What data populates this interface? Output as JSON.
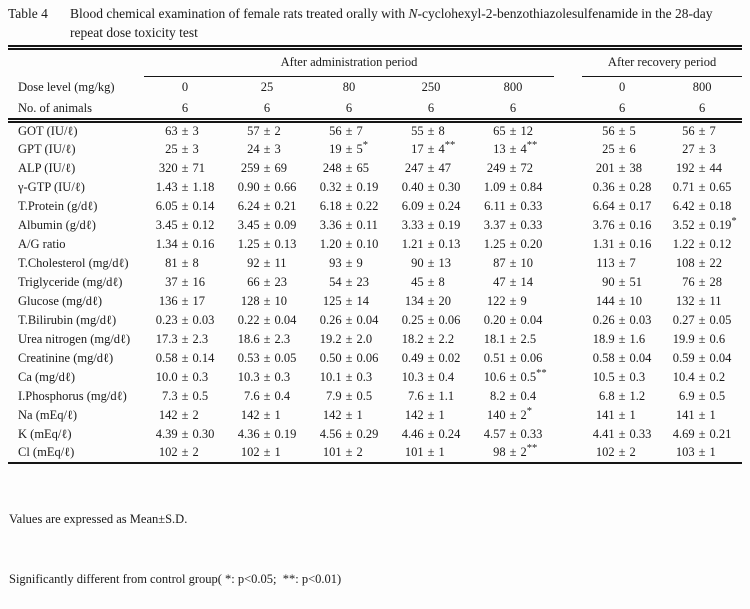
{
  "title": {
    "label": "Table 4",
    "text_before_italic": "Blood chemical examination of female rats treated orally with ",
    "italic": "N",
    "text_after_italic": "-cyclohexyl-2-benzothiazolesulfenamide in the 28-day repeat dose toxicity test"
  },
  "table": {
    "group_headers": {
      "administration": "After administration period",
      "recovery": "After recovery period"
    },
    "dose_row": {
      "label": "Dose level (mg/kg)",
      "admin": [
        "0",
        "25",
        "80",
        "250",
        "800"
      ],
      "recovery": [
        "0",
        "800"
      ]
    },
    "animals_row": {
      "label": "No. of animals",
      "admin": [
        "6",
        "6",
        "6",
        "6",
        "6"
      ],
      "recovery": [
        "6",
        "6"
      ]
    },
    "rows": [
      {
        "label": "GOT (IU/ℓ)",
        "admin": [
          "63 ± 3",
          "57 ± 2",
          "56 ± 7",
          "55 ± 8",
          "65 ± 12"
        ],
        "recovery": [
          "56 ± 5",
          "56 ± 7"
        ]
      },
      {
        "label": "GPT (IU/ℓ)",
        "admin": [
          "25 ± 3",
          "24 ± 3",
          "19 ± 5*",
          "17 ± 4**",
          "13 ± 4**"
        ],
        "recovery": [
          "25 ± 6",
          "27 ± 3"
        ]
      },
      {
        "label": "ALP (IU/ℓ)",
        "admin": [
          "320 ± 71",
          "259 ± 69",
          "248 ± 65",
          "247 ± 47",
          "249 ± 72"
        ],
        "recovery": [
          "201 ± 38",
          "192 ± 44"
        ]
      },
      {
        "label": "γ-GTP (IU/ℓ)",
        "admin": [
          "1.43 ± 1.18",
          "0.90 ± 0.66",
          "0.32 ± 0.19",
          "0.40 ± 0.30",
          "1.09 ± 0.84"
        ],
        "recovery": [
          "0.36 ± 0.28",
          "0.71 ± 0.65"
        ]
      },
      {
        "label": "T.Protein (g/dℓ)",
        "admin": [
          "6.05 ± 0.14",
          "6.24 ± 0.21",
          "6.18 ± 0.22",
          "6.09 ± 0.24",
          "6.11 ± 0.33"
        ],
        "recovery": [
          "6.64 ± 0.17",
          "6.42 ± 0.18"
        ]
      },
      {
        "label": "Albumin (g/dℓ)",
        "admin": [
          "3.45 ± 0.12",
          "3.45 ± 0.09",
          "3.36 ± 0.11",
          "3.33 ± 0.19",
          "3.37 ± 0.33"
        ],
        "recovery": [
          "3.76 ± 0.16",
          "3.52 ± 0.19*"
        ]
      },
      {
        "label": "A/G ratio",
        "admin": [
          "1.34 ± 0.16",
          "1.25 ± 0.13",
          "1.20 ± 0.10",
          "1.21 ± 0.13",
          "1.25 ± 0.20"
        ],
        "recovery": [
          "1.31 ± 0.16",
          "1.22 ± 0.12"
        ]
      },
      {
        "label": "T.Cholesterol (mg/dℓ)",
        "admin": [
          "81 ± 8",
          "92 ± 11",
          "93 ± 9",
          "90 ± 13",
          "87 ± 10"
        ],
        "recovery": [
          "113 ± 7",
          "108 ± 22"
        ]
      },
      {
        "label": "Triglyceride (mg/dℓ)",
        "admin": [
          "37 ± 16",
          "66 ± 23",
          "54 ± 23",
          "45 ± 8",
          "47 ± 14"
        ],
        "recovery": [
          "90 ± 51",
          "76 ± 28"
        ]
      },
      {
        "label": "Glucose (mg/dℓ)",
        "admin": [
          "136 ± 17",
          "128 ± 10",
          "125 ± 14",
          "134 ± 20",
          "122 ± 9"
        ],
        "recovery": [
          "144 ± 10",
          "132 ± 11"
        ]
      },
      {
        "label": "T.Bilirubin (mg/dℓ)",
        "admin": [
          "0.23 ± 0.03",
          "0.22 ± 0.04",
          "0.26 ± 0.04",
          "0.25 ± 0.06",
          "0.20 ± 0.04"
        ],
        "recovery": [
          "0.26 ± 0.03",
          "0.27 ± 0.05"
        ]
      },
      {
        "label": "Urea nitrogen (mg/dℓ)",
        "admin": [
          "17.3 ± 2.3",
          "18.6 ± 2.3",
          "19.2 ± 2.0",
          "18.2 ± 2.2",
          "18.1 ± 2.5"
        ],
        "recovery": [
          "18.9 ± 1.6",
          "19.9 ± 0.6"
        ]
      },
      {
        "label": "Creatinine (mg/dℓ)",
        "admin": [
          "0.58 ± 0.14",
          "0.53 ± 0.05",
          "0.50 ± 0.06",
          "0.49 ± 0.02",
          "0.51 ± 0.06"
        ],
        "recovery": [
          "0.58 ± 0.04",
          "0.59 ± 0.04"
        ]
      },
      {
        "label": "Ca (mg/dℓ)",
        "admin": [
          "10.0 ± 0.3",
          "10.3 ± 0.3",
          "10.1 ± 0.3",
          "10.3 ± 0.4",
          "10.6 ± 0.5**"
        ],
        "recovery": [
          "10.5 ± 0.3",
          "10.4 ± 0.2"
        ]
      },
      {
        "label": "I.Phosphorus (mg/dℓ)",
        "admin": [
          "7.3 ± 0.5",
          "7.6 ± 0.4",
          "7.9 ± 0.5",
          "7.6 ± 1.1",
          "8.2 ± 0.4"
        ],
        "recovery": [
          "6.8 ± 1.2",
          "6.9 ± 0.5"
        ]
      },
      {
        "label": "Na (mEq/ℓ)",
        "admin": [
          "142 ± 2",
          "142 ± 1",
          "142 ± 1",
          "142 ± 1",
          "140 ± 2*"
        ],
        "recovery": [
          "141 ± 1",
          "141 ± 1"
        ]
      },
      {
        "label": "K (mEq/ℓ)",
        "admin": [
          "4.39 ± 0.30",
          "4.36 ± 0.19",
          "4.56 ± 0.29",
          "4.46 ± 0.24",
          "4.57 ± 0.33"
        ],
        "recovery": [
          "4.41 ± 0.33",
          "4.69 ± 0.21"
        ]
      },
      {
        "label": "Cl (mEq/ℓ)",
        "admin": [
          "102 ± 2",
          "102 ± 1",
          "101 ± 2",
          "101 ± 1",
          "98 ± 2**"
        ],
        "recovery": [
          "102 ± 2",
          "103 ± 1"
        ]
      }
    ]
  },
  "footnotes": {
    "line1": "Values are expressed as Mean±S.D.",
    "line2": "Significantly different from control group( *: p<0.05;  **: p<0.01)"
  }
}
